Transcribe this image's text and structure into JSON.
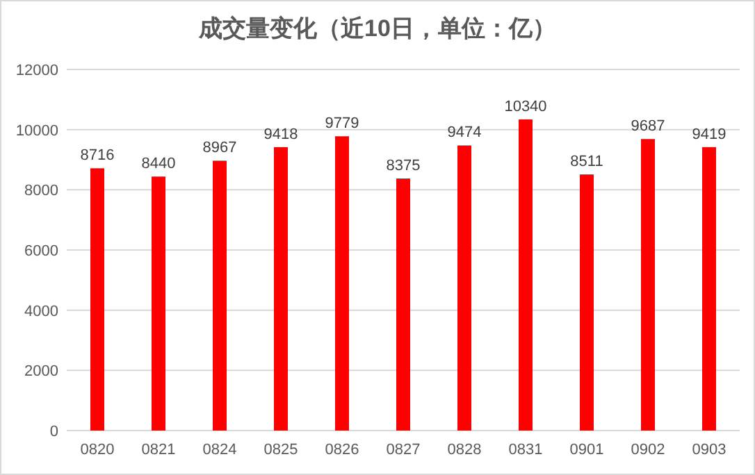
{
  "chart_data": {
    "type": "bar",
    "title": "成交量变化（近10日，单位：亿）",
    "categories": [
      "0820",
      "0821",
      "0824",
      "0825",
      "0826",
      "0827",
      "0828",
      "0831",
      "0901",
      "0902",
      "0903"
    ],
    "values": [
      8716,
      8440,
      8967,
      9418,
      9779,
      8375,
      9474,
      10340,
      8511,
      9687,
      9419
    ],
    "color": "#ff0000",
    "ylim": [
      0,
      12000
    ],
    "yticks": [
      0,
      2000,
      4000,
      6000,
      8000,
      10000,
      12000
    ],
    "grid": "y",
    "data_labels": true
  }
}
